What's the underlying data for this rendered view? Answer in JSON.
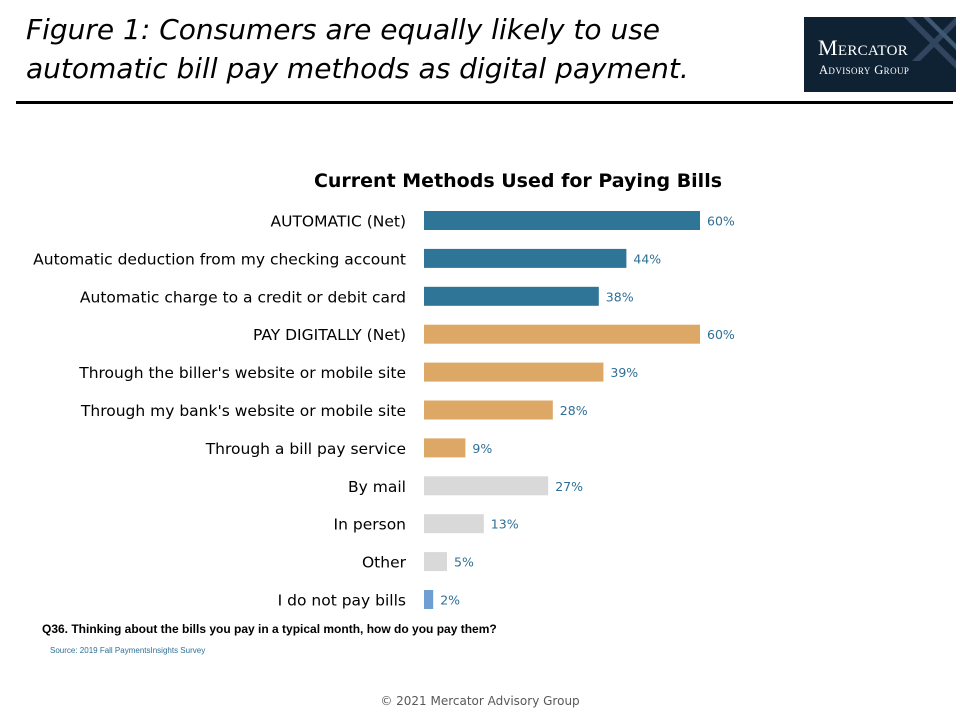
{
  "figure_title": "Figure 1: Consumers are equally likely to use automatic bill pay methods as digital payment.",
  "logo": {
    "line1": "Mercator",
    "line2": "Advisory Group"
  },
  "chart_data": {
    "type": "bar",
    "orientation": "horizontal",
    "title": "Current Methods Used for Paying Bills",
    "xlim": [
      0,
      100
    ],
    "grid": false,
    "categories": [
      "AUTOMATIC (Net)",
      "Automatic deduction from my checking account",
      "Automatic charge to a credit or debit card",
      "PAY DIGITALLY (Net)",
      "Through the biller's website or mobile site",
      "Through my bank's website or mobile site",
      "Through a bill pay service",
      "By mail",
      "In person",
      "Other",
      "I do not pay bills"
    ],
    "values": [
      60,
      44,
      38,
      60,
      39,
      28,
      9,
      27,
      13,
      5,
      2
    ],
    "value_labels": [
      "60%",
      "44%",
      "38%",
      "60%",
      "39%",
      "28%",
      "9%",
      "27%",
      "13%",
      "5%",
      "2%"
    ],
    "bar_colors": [
      "#2e7598",
      "#2e7598",
      "#2e7598",
      "#dda766",
      "#dda766",
      "#dda766",
      "#dda766",
      "#d9d9d9",
      "#d9d9d9",
      "#d9d9d9",
      "#6f9fd2"
    ],
    "label_color": "#2e6f95"
  },
  "question": "Q36. Thinking about the bills you pay in a typical month, how do you pay them?",
  "source": "Source: 2019 Fall PaymentsInsights Survey",
  "copyright": "© 2021 Mercator Advisory Group"
}
